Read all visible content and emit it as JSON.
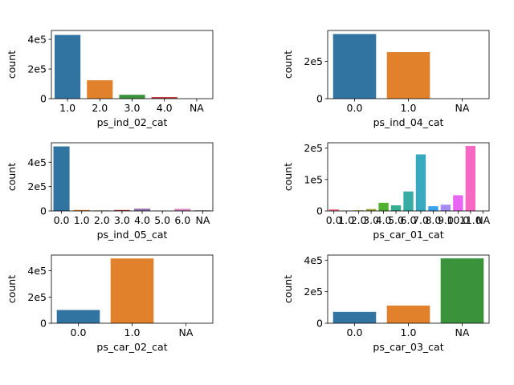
{
  "chart_data": [
    {
      "type": "bar",
      "categories": [
        "1.0",
        "2.0",
        "3.0",
        "4.0",
        "NA"
      ],
      "values": [
        430000,
        124000,
        26000,
        11000,
        0
      ],
      "colors": [
        "#3274a1",
        "#e1812c",
        "#3a923a",
        "#c03d3e",
        "#9372b2"
      ],
      "ylim": [
        0,
        460000
      ],
      "yticks": [
        0,
        200000,
        400000
      ],
      "ytick_labels": [
        "0",
        "2e5",
        "4e5"
      ],
      "xlabel": "ps_ind_02_cat",
      "ylabel": "count"
    },
    {
      "type": "bar",
      "categories": [
        "0.0",
        "1.0",
        "NA"
      ],
      "values": [
        346000,
        249000,
        0
      ],
      "colors": [
        "#3274a1",
        "#e1812c",
        "#3a923a"
      ],
      "ylim": [
        0,
        365000
      ],
      "yticks": [
        0,
        200000
      ],
      "ytick_labels": [
        "0",
        "2e5"
      ],
      "xlabel": "ps_ind_04_cat",
      "ylabel": "count"
    },
    {
      "type": "bar",
      "categories": [
        "0.0",
        "1.0",
        "2.0",
        "3.0",
        "4.0",
        "5.0",
        "6.0",
        "NA"
      ],
      "values": [
        530000,
        8000,
        4000,
        8000,
        19000,
        2000,
        17000,
        5000
      ],
      "colors": [
        "#3274a1",
        "#e1812c",
        "#3a923a",
        "#c03d3e",
        "#9372b2",
        "#845b53",
        "#d684bd",
        "#7f7f7f"
      ],
      "ylim": [
        0,
        560000
      ],
      "yticks": [
        0,
        200000,
        400000
      ],
      "ytick_labels": [
        "0",
        "2e5",
        "4e5"
      ],
      "xlabel": "ps_ind_05_cat",
      "ylabel": "count"
    },
    {
      "type": "bar",
      "categories": [
        "0.0",
        "1.0",
        "2.0",
        "3.0",
        "4.0",
        "5.0",
        "6.0",
        "7.0",
        "8.0",
        "9.0",
        "10.0",
        "11.0",
        "NA"
      ],
      "values": [
        5000,
        1000,
        2000,
        6000,
        26000,
        18000,
        62000,
        180000,
        15000,
        20000,
        50000,
        207000,
        100
      ],
      "colors": [
        "#f77189",
        "#e18631",
        "#bb9832",
        "#97a431",
        "#50b131",
        "#34ae91",
        "#36ada4",
        "#38aabf",
        "#3ba3ec",
        "#a48cf4",
        "#e866f4",
        "#f668c2",
        "#f06e9b"
      ],
      "ylim": [
        0,
        217000
      ],
      "yticks": [
        0,
        100000,
        200000
      ],
      "ytick_labels": [
        "0",
        "1e5",
        "2e5"
      ],
      "xlabel": "ps_car_01_cat",
      "ylabel": "count"
    },
    {
      "type": "bar",
      "categories": [
        "0.0",
        "1.0",
        "NA"
      ],
      "values": [
        101000,
        494000,
        5
      ],
      "colors": [
        "#3274a1",
        "#e1812c",
        "#3a923a"
      ],
      "ylim": [
        0,
        520000
      ],
      "yticks": [
        0,
        200000,
        400000
      ],
      "ytick_labels": [
        "0",
        "2e5",
        "4e5"
      ],
      "xlabel": "ps_car_02_cat",
      "ylabel": "count"
    },
    {
      "type": "bar",
      "categories": [
        "0.0",
        "1.0",
        "NA"
      ],
      "values": [
        72000,
        112000,
        411000
      ],
      "colors": [
        "#3274a1",
        "#e1812c",
        "#3a923a"
      ],
      "ylim": [
        0,
        432000
      ],
      "yticks": [
        0,
        200000,
        400000
      ],
      "ytick_labels": [
        "0",
        "2e5",
        "4e5"
      ],
      "xlabel": "ps_car_03_cat",
      "ylabel": "count"
    }
  ]
}
